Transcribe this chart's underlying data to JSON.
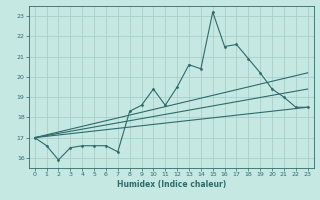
{
  "title": "",
  "xlabel": "Humidex (Indice chaleur)",
  "ylabel": "",
  "background_color": "#c5e8e2",
  "grid_color": "#a8d0ca",
  "line_color": "#2e6b6b",
  "xlim": [
    -0.5,
    23.5
  ],
  "ylim": [
    15.5,
    23.5
  ],
  "yticks": [
    16,
    17,
    18,
    19,
    20,
    21,
    22,
    23
  ],
  "xticks": [
    0,
    1,
    2,
    3,
    4,
    5,
    6,
    7,
    8,
    9,
    10,
    11,
    12,
    13,
    14,
    15,
    16,
    17,
    18,
    19,
    20,
    21,
    22,
    23
  ],
  "series1_x": [
    0,
    1,
    2,
    3,
    4,
    5,
    6,
    7,
    8,
    9,
    10,
    11,
    12,
    13,
    14,
    15,
    16,
    17,
    18,
    19,
    20,
    21,
    22,
    23
  ],
  "series1_y": [
    17.0,
    16.6,
    15.9,
    16.5,
    16.6,
    16.6,
    16.6,
    16.3,
    18.3,
    18.6,
    19.4,
    18.6,
    19.5,
    20.6,
    20.4,
    23.2,
    21.5,
    21.6,
    20.9,
    20.2,
    19.4,
    19.0,
    18.5,
    18.5
  ],
  "trend1_x": [
    0,
    23
  ],
  "trend1_y": [
    17.0,
    18.5
  ],
  "trend2_x": [
    0,
    23
  ],
  "trend2_y": [
    17.0,
    19.4
  ],
  "trend3_x": [
    0,
    23
  ],
  "trend3_y": [
    17.0,
    20.2
  ]
}
